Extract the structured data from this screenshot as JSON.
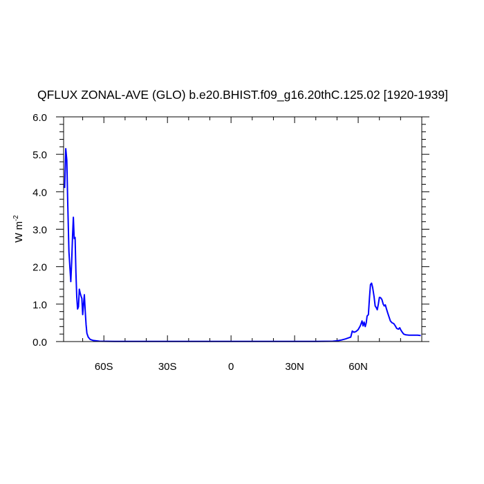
{
  "chart_data": {
    "type": "line",
    "title": "QFLUX ZONAL-AVE (GLO) b.e20.BHIST.f09_g16.20thC.125.02 [1920-1939]",
    "xlabel": "",
    "ylabel_base": "W m",
    "ylabel_sup": "-2",
    "xlim": [
      -79,
      90
    ],
    "ylim": [
      0,
      6
    ],
    "x_ticks": [
      {
        "value": -60,
        "label": "60S"
      },
      {
        "value": -30,
        "label": "30S"
      },
      {
        "value": 0,
        "label": "0"
      },
      {
        "value": 30,
        "label": "30N"
      },
      {
        "value": 60,
        "label": "60N"
      }
    ],
    "y_ticks": [
      {
        "value": 0,
        "label": "0.0"
      },
      {
        "value": 1,
        "label": "1.0"
      },
      {
        "value": 2,
        "label": "2.0"
      },
      {
        "value": 3,
        "label": "3.0"
      },
      {
        "value": 4,
        "label": "4.0"
      },
      {
        "value": 5,
        "label": "5.0"
      },
      {
        "value": 6,
        "label": "6.0"
      }
    ],
    "grid": false,
    "series": [
      {
        "color": "#0000ff",
        "points": [
          [
            -78.5,
            4.1
          ],
          [
            -78.0,
            5.15
          ],
          [
            -77.5,
            4.85
          ],
          [
            -77.0,
            3.6
          ],
          [
            -76.5,
            2.4
          ],
          [
            -76.0,
            1.95
          ],
          [
            -75.6,
            1.6
          ],
          [
            -75.2,
            2.1
          ],
          [
            -74.8,
            2.8
          ],
          [
            -74.4,
            3.32
          ],
          [
            -74.0,
            2.75
          ],
          [
            -73.6,
            2.78
          ],
          [
            -73.2,
            1.85
          ],
          [
            -72.8,
            1.2
          ],
          [
            -72.4,
            0.87
          ],
          [
            -72.0,
            0.93
          ],
          [
            -71.6,
            1.4
          ],
          [
            -71.2,
            1.3
          ],
          [
            -70.8,
            1.22
          ],
          [
            -70.4,
            1.15
          ],
          [
            -70.0,
            0.72
          ],
          [
            -69.6,
            1.0
          ],
          [
            -69.2,
            1.25
          ],
          [
            -68.8,
            0.8
          ],
          [
            -68.4,
            0.45
          ],
          [
            -68.0,
            0.22
          ],
          [
            -67.4,
            0.12
          ],
          [
            -66.5,
            0.06
          ],
          [
            -65.0,
            0.03
          ],
          [
            -62.0,
            0.01
          ],
          [
            -55.0,
            0.005
          ],
          [
            -40.0,
            0.005
          ],
          [
            -20.0,
            0.005
          ],
          [
            0.0,
            0.005
          ],
          [
            20.0,
            0.005
          ],
          [
            40.0,
            0.005
          ],
          [
            48.0,
            0.01
          ],
          [
            50.0,
            0.02
          ],
          [
            52.0,
            0.04
          ],
          [
            54.0,
            0.07
          ],
          [
            55.5,
            0.1
          ],
          [
            56.5,
            0.12
          ],
          [
            57.2,
            0.28
          ],
          [
            58.0,
            0.25
          ],
          [
            59.0,
            0.27
          ],
          [
            60.0,
            0.32
          ],
          [
            61.0,
            0.42
          ],
          [
            61.8,
            0.55
          ],
          [
            62.3,
            0.42
          ],
          [
            62.8,
            0.52
          ],
          [
            63.3,
            0.4
          ],
          [
            63.8,
            0.5
          ],
          [
            64.2,
            0.68
          ],
          [
            64.8,
            0.72
          ],
          [
            65.3,
            1.15
          ],
          [
            65.8,
            1.52
          ],
          [
            66.3,
            1.56
          ],
          [
            66.8,
            1.45
          ],
          [
            67.5,
            1.2
          ],
          [
            68.0,
            0.95
          ],
          [
            68.6,
            0.9
          ],
          [
            69.0,
            0.85
          ],
          [
            69.5,
            1.0
          ],
          [
            70.0,
            1.18
          ],
          [
            70.6,
            1.17
          ],
          [
            71.2,
            1.12
          ],
          [
            71.8,
            1.0
          ],
          [
            72.3,
            0.95
          ],
          [
            72.8,
            0.98
          ],
          [
            73.3,
            0.88
          ],
          [
            74.0,
            0.75
          ],
          [
            74.6,
            0.65
          ],
          [
            75.2,
            0.55
          ],
          [
            76.0,
            0.5
          ],
          [
            76.8,
            0.48
          ],
          [
            77.5,
            0.42
          ],
          [
            78.2,
            0.35
          ],
          [
            79.0,
            0.33
          ],
          [
            79.6,
            0.37
          ],
          [
            80.2,
            0.3
          ],
          [
            80.8,
            0.25
          ],
          [
            81.5,
            0.2
          ],
          [
            82.5,
            0.18
          ],
          [
            84.0,
            0.17
          ],
          [
            86.0,
            0.17
          ],
          [
            88.0,
            0.17
          ],
          [
            89.5,
            0.16
          ]
        ]
      }
    ]
  }
}
